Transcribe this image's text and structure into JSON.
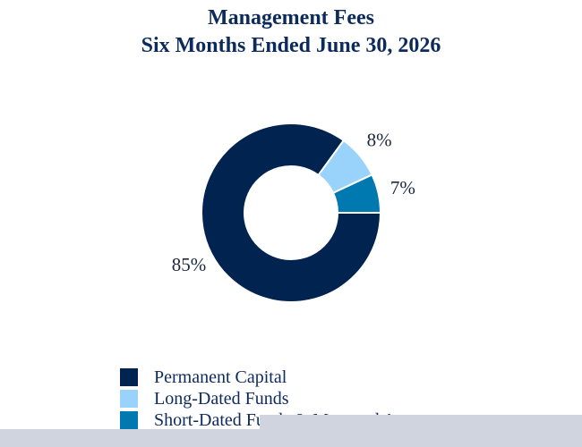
{
  "chart_data": {
    "type": "pie",
    "donut": true,
    "title": "Management Fees",
    "subtitle": "Six Months Ended June 30, 2026",
    "slices": [
      {
        "name": "Permanent Capital",
        "value": 85,
        "label": "85%",
        "color": "#00234f"
      },
      {
        "name": "Long-Dated Funds",
        "value": 8,
        "label": "8%",
        "color": "#99d3fb"
      },
      {
        "name": "Short-Dated Funds & Managed Accounts",
        "value": 7,
        "label": "7%",
        "color": "#0078b0"
      }
    ],
    "legend": {
      "placement": "bottom-left",
      "entries": [
        {
          "label": "Permanent Capital",
          "color": "#00234f"
        },
        {
          "label": "Long-Dated Funds",
          "color": "#99d3fb"
        },
        {
          "label": "Short-Dated Funds & Managed Accounts",
          "color": "#0078b0"
        }
      ]
    }
  }
}
